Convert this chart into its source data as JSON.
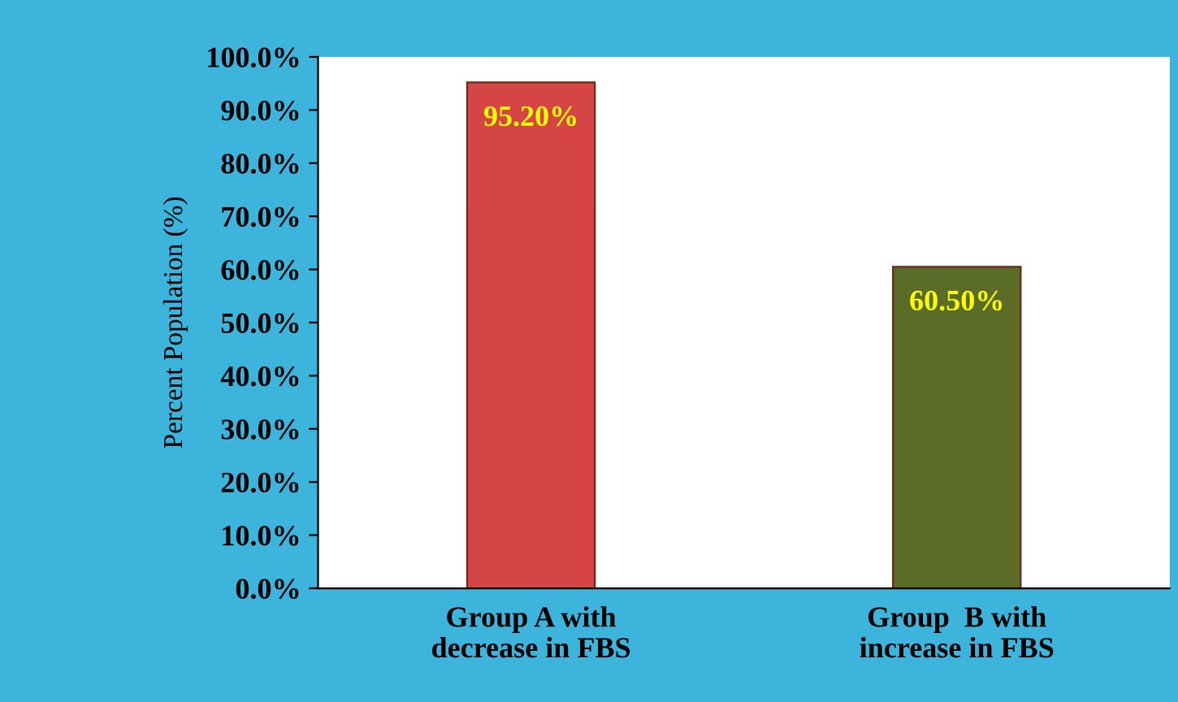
{
  "chart_data": {
    "type": "bar",
    "ylabel": "Percent Population (%)",
    "categories": [
      "Group A with\ndecrease in FBS",
      "Group  B with\nincrease in FBS"
    ],
    "values": [
      95.2,
      60.5
    ],
    "colors": [
      "#d64545",
      "#5b6b28"
    ],
    "value_labels": [
      "95.20%",
      "60.50%"
    ],
    "ylim": [
      0,
      100
    ],
    "yticks": [
      {
        "value": 0,
        "label": "0.0%"
      },
      {
        "value": 10,
        "label": "10.0%"
      },
      {
        "value": 20,
        "label": "20.0%"
      },
      {
        "value": 30,
        "label": "30.0%"
      },
      {
        "value": 40,
        "label": "40.0%"
      },
      {
        "value": 50,
        "label": "50.0%"
      },
      {
        "value": 60,
        "label": "60.0%"
      },
      {
        "value": 70,
        "label": "70.0%"
      },
      {
        "value": 80,
        "label": "80.0%"
      },
      {
        "value": 90,
        "label": "90.0%"
      },
      {
        "value": 100,
        "label": "100.0%"
      }
    ],
    "grid": false
  }
}
